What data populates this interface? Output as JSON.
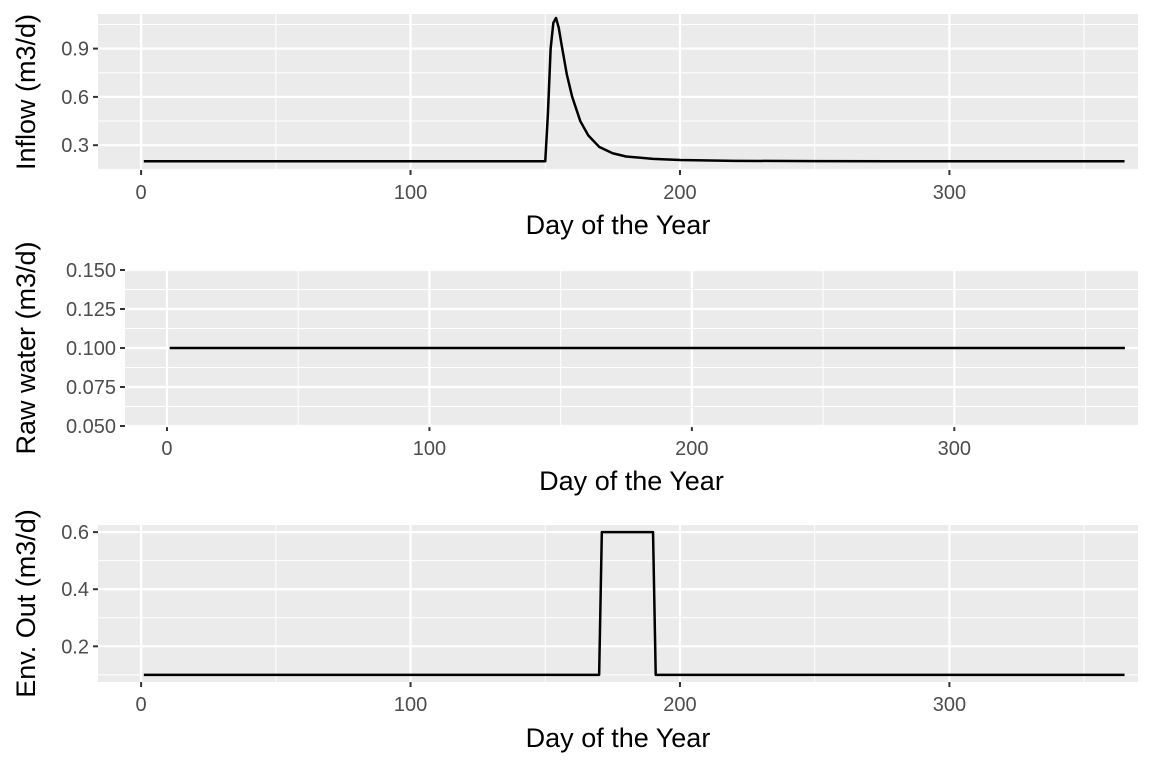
{
  "chart_data": [
    {
      "type": "line",
      "xlabel": "Day of the Year",
      "ylabel": "Inflow (m3/d)",
      "xlim": [
        -16,
        370
      ],
      "ylim": [
        0.146,
        1.115
      ],
      "x_ticks": [
        0,
        100,
        200,
        300
      ],
      "x_tick_labels": [
        "0",
        "100",
        "200",
        "300"
      ],
      "y_ticks": [
        0.3,
        0.6,
        0.9
      ],
      "y_tick_labels": [
        "0.3",
        "0.6",
        "0.9"
      ],
      "grid": true,
      "series": [
        {
          "x": [
            1,
            50,
            100,
            150,
            151,
            152,
            153,
            154,
            155,
            156,
            158,
            160,
            163,
            166,
            170,
            175,
            180,
            190,
            200,
            220,
            250,
            300,
            365
          ],
          "values": [
            0.2,
            0.2,
            0.2,
            0.2,
            0.5,
            0.9,
            1.06,
            1.09,
            1.03,
            0.93,
            0.74,
            0.6,
            0.45,
            0.36,
            0.29,
            0.25,
            0.23,
            0.215,
            0.208,
            0.203,
            0.201,
            0.2,
            0.2
          ]
        }
      ]
    },
    {
      "type": "line",
      "xlabel": "Day of the Year",
      "ylabel": "Raw water (m3/d)",
      "xlim": [
        -16,
        370
      ],
      "ylim": [
        0.05,
        0.15
      ],
      "x_ticks": [
        0,
        100,
        200,
        300
      ],
      "x_tick_labels": [
        "0",
        "100",
        "200",
        "300"
      ],
      "y_ticks": [
        0.05,
        0.075,
        0.1,
        0.125,
        0.15
      ],
      "y_tick_labels": [
        "0.050",
        "0.075",
        "0.100",
        "0.125",
        "0.150"
      ],
      "grid": true,
      "series": [
        {
          "x": [
            1,
            365
          ],
          "values": [
            0.1,
            0.1
          ]
        }
      ]
    },
    {
      "type": "line",
      "xlabel": "Day of the Year",
      "ylabel": "Env. Out (m3/d)",
      "xlim": [
        -16,
        370
      ],
      "ylim": [
        0.075,
        0.625
      ],
      "x_ticks": [
        0,
        100,
        200,
        300
      ],
      "x_tick_labels": [
        "0",
        "100",
        "200",
        "300"
      ],
      "y_ticks": [
        0.2,
        0.4,
        0.6
      ],
      "y_tick_labels": [
        "0.2",
        "0.4",
        "0.6"
      ],
      "grid": true,
      "series": [
        {
          "x": [
            1,
            170,
            171,
            190,
            191,
            365
          ],
          "values": [
            0.1,
            0.1,
            0.6,
            0.6,
            0.1,
            0.1
          ]
        }
      ]
    }
  ],
  "colors": {
    "panel_bg": "#ebebeb",
    "grid_major": "#ffffff",
    "line": "#000000",
    "tick_text": "#4d4d4d"
  }
}
